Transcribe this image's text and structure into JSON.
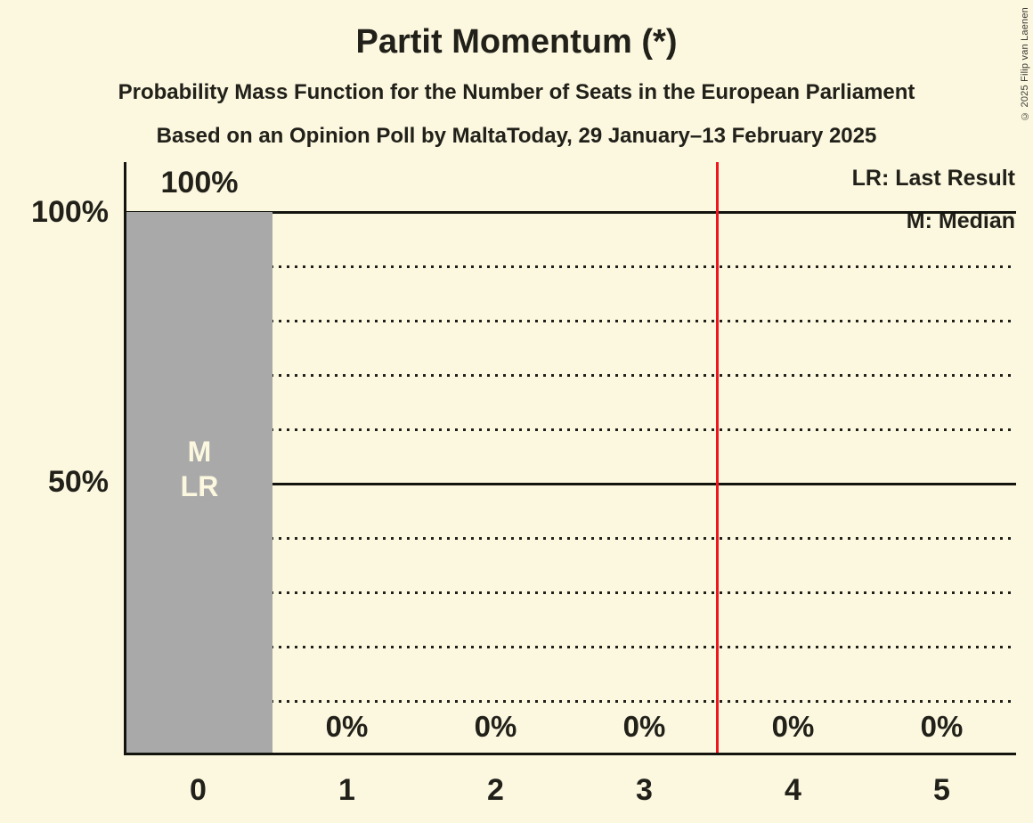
{
  "page": {
    "copyright": "© 2025 Filip van Laenen"
  },
  "chart_data": {
    "type": "bar",
    "title": "Partit Momentum (*)",
    "subtitle": "Probability Mass Function for the Number of Seats in the European Parliament",
    "poll_line": "Based on an Opinion Poll by MaltaToday, 29 January–13 February 2025",
    "categories": [
      "0",
      "1",
      "2",
      "3",
      "4",
      "5"
    ],
    "values": [
      100,
      0,
      0,
      0,
      0,
      0
    ],
    "bar_value_labels": [
      "100%",
      "0%",
      "0%",
      "0%",
      "0%",
      "0%"
    ],
    "y_tick_labels": [
      "100%",
      "50%"
    ],
    "ylim": [
      0,
      100
    ],
    "grid": {
      "dotted_every_percent": 10,
      "solid_at_percent": [
        100,
        50,
        0
      ]
    },
    "legend": [
      "LR: Last Result",
      "M: Median"
    ],
    "annotations": {
      "median_symbol": "M",
      "last_result_symbol": "LR",
      "last_result_line_x": 3.5
    },
    "colors": {
      "background": "#FCF7DF",
      "bar": "#A9A9A9",
      "last_result_line": "#F0141E",
      "text": "#21211A"
    }
  }
}
